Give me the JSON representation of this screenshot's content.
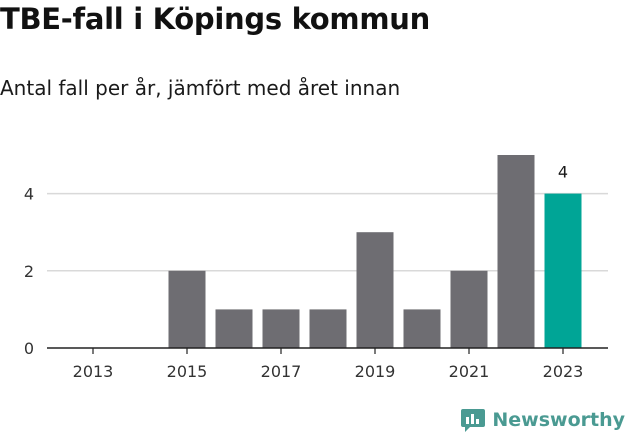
{
  "title": "TBE-fall i Köpings kommun",
  "subtitle": "Antal fall per år, jämfört med året innan",
  "brand": {
    "name": "Newsworthy",
    "icon": "newsworthy-logo-icon"
  },
  "colors": {
    "bar": "#6e6d72",
    "highlight": "#00a596",
    "grid": "#d9d9d9",
    "axis": "#222222",
    "brand": "#4a9a92"
  },
  "chart_data": {
    "type": "bar",
    "title": "TBE-fall i Köpings kommun",
    "subtitle": "Antal fall per år, jämfört med året innan",
    "xlabel": "",
    "ylabel": "",
    "categories": [
      "2013",
      "2014",
      "2015",
      "2016",
      "2017",
      "2018",
      "2019",
      "2020",
      "2021",
      "2022",
      "2023"
    ],
    "values": [
      0,
      0,
      2,
      1,
      1,
      1,
      3,
      1,
      2,
      5,
      4
    ],
    "highlight_index": 10,
    "data_labels": [
      {
        "category": "2023",
        "text": "4"
      }
    ],
    "x_tick_labels": [
      "2013",
      "2015",
      "2017",
      "2019",
      "2021",
      "2023"
    ],
    "y_ticks": [
      0,
      2,
      4
    ],
    "ylim": [
      0,
      5
    ],
    "grid": true,
    "legend": "none"
  }
}
